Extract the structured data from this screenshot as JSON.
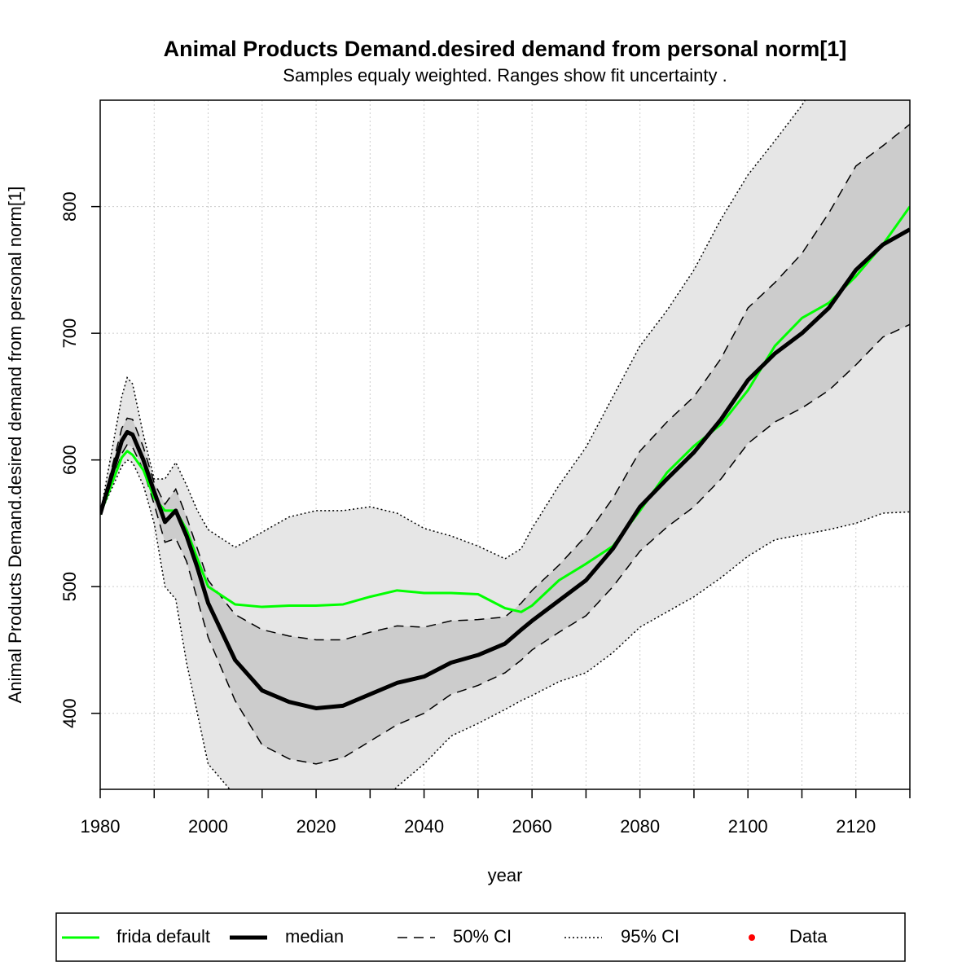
{
  "chart_data": {
    "type": "line",
    "title": "Animal Products Demand.desired demand from personal norm[1]",
    "subtitle": "Samples equaly weighted. Ranges show  fit uncertainty .",
    "x_label": "year",
    "y_label": "Animal Products Demand.desired demand from personal norm[1]",
    "xlim": [
      1980,
      2130
    ],
    "ylim": [
      340,
      884
    ],
    "xticks": [
      1980,
      2000,
      2020,
      2040,
      2060,
      2080,
      2100,
      2120
    ],
    "minor_xticks": [
      1990,
      2010,
      2030,
      2050,
      2070,
      2090,
      2110,
      2130
    ],
    "yticks": [
      400,
      500,
      600,
      700,
      800
    ],
    "grid": true,
    "x": [
      1980,
      1984,
      1985,
      1986,
      1988,
      1990,
      1992,
      1994,
      1996,
      1998,
      2000,
      2005,
      2010,
      2015,
      2020,
      2025,
      2030,
      2035,
      2040,
      2045,
      2050,
      2055,
      2058,
      2060,
      2065,
      2070,
      2075,
      2080,
      2085,
      2090,
      2095,
      2100,
      2105,
      2110,
      2115,
      2120,
      2125,
      2130
    ],
    "bands": [
      {
        "name": "95% CI",
        "fill": "#e6e6e6",
        "linestyle": "dotted",
        "upper": [
          557,
          650,
          665,
          660,
          620,
          585,
          585,
          598,
          580,
          560,
          545,
          531,
          543,
          555,
          560,
          560,
          563,
          558,
          546,
          540,
          532,
          522,
          530,
          546,
          580,
          610,
          650,
          690,
          718,
          750,
          790,
          825,
          852,
          880,
          915,
          945,
          970,
          990
        ],
        "lower": [
          557,
          595,
          600,
          598,
          580,
          550,
          500,
          490,
          440,
          400,
          360,
          335,
          310,
          295,
          290,
          300,
          318,
          342,
          360,
          382,
          392,
          403,
          410,
          414,
          425,
          432,
          448,
          468,
          480,
          492,
          507,
          524,
          537,
          541,
          545,
          550,
          558,
          559
        ]
      },
      {
        "name": "50% CI",
        "fill": "#cccccc",
        "linestyle": "dashed",
        "upper": [
          557,
          625,
          633,
          632,
          610,
          582,
          565,
          577,
          555,
          530,
          505,
          478,
          466,
          461,
          458,
          458,
          464,
          469,
          468,
          473,
          474,
          476,
          487,
          497,
          517,
          540,
          570,
          607,
          630,
          650,
          680,
          720,
          740,
          763,
          795,
          832,
          848,
          865
        ],
        "lower": [
          557,
          605,
          612,
          610,
          592,
          565,
          535,
          538,
          520,
          490,
          460,
          410,
          375,
          364,
          360,
          365,
          378,
          391,
          400,
          415,
          422,
          432,
          442,
          450,
          464,
          477,
          500,
          528,
          547,
          563,
          585,
          613,
          630,
          641,
          655,
          675,
          697,
          707
        ]
      }
    ],
    "series": [
      {
        "name": "frida default",
        "color": "#00ff00",
        "linewidth": 3,
        "values": [
          557,
          602,
          607,
          604,
          592,
          570,
          560,
          560,
          545,
          522,
          500,
          486,
          484,
          485,
          485,
          486,
          492,
          497,
          495,
          495,
          494,
          483,
          480,
          485,
          505,
          518,
          532,
          560,
          590,
          611,
          628,
          655,
          690,
          712,
          724,
          745,
          770,
          800
        ]
      },
      {
        "name": "median",
        "color": "#000000",
        "linewidth": 5,
        "values": [
          557,
          615,
          622,
          620,
          600,
          575,
          551,
          560,
          540,
          515,
          487,
          442,
          418,
          409,
          404,
          406,
          415,
          424,
          429,
          440,
          446,
          455,
          466,
          473,
          489,
          505,
          530,
          563,
          585,
          606,
          632,
          663,
          684,
          700,
          720,
          750,
          770,
          782
        ]
      }
    ],
    "legend_extra": [
      {
        "name": "Data",
        "color": "#ff0000"
      }
    ],
    "legend_position": "bottom"
  }
}
